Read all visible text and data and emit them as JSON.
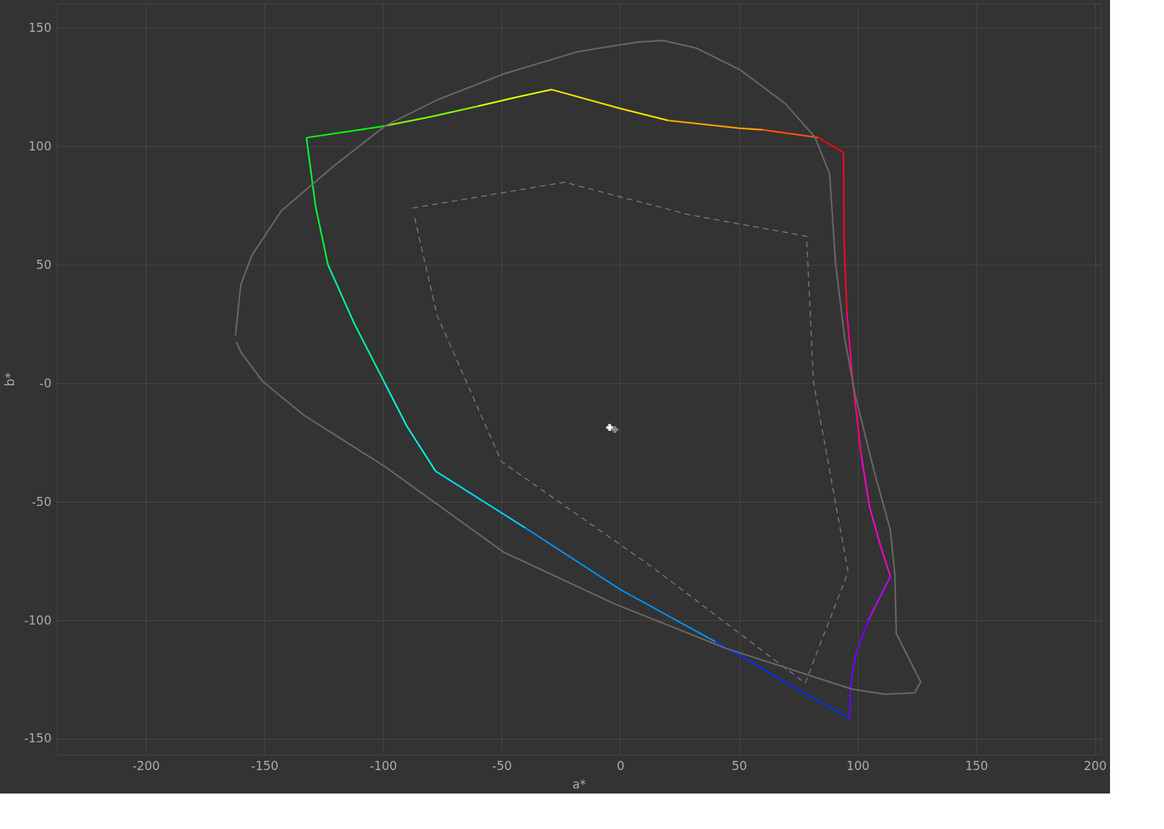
{
  "chart_data": {
    "type": "line",
    "xlabel": "a*",
    "ylabel": "b*",
    "xlim": [
      -237.5,
      202.5
    ],
    "ylim": [
      -156.6,
      160.3
    ],
    "xticks": [
      -200,
      -150,
      -100,
      -50,
      0,
      50,
      100,
      150,
      200
    ],
    "yticks": [
      -150,
      -100,
      -50,
      {
        "value": 0,
        "label": "-0"
      },
      50,
      100,
      150
    ],
    "grid": true,
    "series": [
      {
        "color": "#777777",
        "line_style": "dashed",
        "x": [
          -87.6,
          -23.6,
          28.9,
          78.5,
          81.4,
          96.0,
          77.9,
          13.3,
          -50.1,
          -77.3,
          -86.8
        ],
        "values": [
          74.0,
          84.9,
          71.2,
          62.1,
          0.8,
          -79.6,
          -126.5,
          -77.4,
          -33.0,
          28.9,
          70.5
        ]
      },
      {
        "color": "#00ff00",
        "line_style": "solid",
        "x": [
          -132.3,
          -120,
          -100
        ],
        "values": [
          103.7,
          105.5,
          108.5
        ]
      },
      {
        "color": "#80ff00",
        "line_style": "solid",
        "x": [
          -100,
          -80,
          -60
        ],
        "values": [
          108.5,
          112.5,
          117
        ]
      },
      {
        "color": "#e0ff00",
        "line_style": "solid",
        "x": [
          -60,
          -45,
          -28.9
        ],
        "values": [
          117,
          120.5,
          124
        ]
      },
      {
        "color": "#ffe000",
        "line_style": "solid",
        "x": [
          -28.9,
          0,
          20
        ],
        "values": [
          124,
          116,
          111
        ]
      },
      {
        "color": "#ffa000",
        "line_style": "solid",
        "x": [
          20,
          50,
          60
        ],
        "values": [
          111,
          107.7,
          107
        ]
      },
      {
        "color": "#ff5000",
        "line_style": "solid",
        "x": [
          60,
          83.5
        ],
        "values": [
          107,
          103.7
        ]
      },
      {
        "color": "#ff0000",
        "line_style": "solid",
        "x": [
          83.5,
          94.1
        ],
        "values": [
          103.7,
          97.4
        ]
      },
      {
        "color": "#ff0030",
        "line_style": "solid",
        "x": [
          94.1,
          94.3,
          95.5
        ],
        "values": [
          97.4,
          60,
          30
        ]
      },
      {
        "color": "#ff0080",
        "line_style": "solid",
        "x": [
          95.5,
          98,
          101.5
        ],
        "values": [
          30,
          0,
          -30
        ]
      },
      {
        "color": "#ff00c8",
        "line_style": "solid",
        "x": [
          101.5,
          105,
          109.5,
          113.8
        ],
        "values": [
          -30,
          -52,
          -68,
          -81.5
        ]
      },
      {
        "color": "#c000ff",
        "line_style": "solid",
        "x": [
          113.8,
          104.5
        ],
        "values": [
          -81.5,
          -100
        ]
      },
      {
        "color": "#7000ff",
        "line_style": "solid",
        "x": [
          104.5,
          99,
          97,
          96.6
        ],
        "values": [
          -100,
          -115,
          -128,
          -141.5
        ]
      },
      {
        "color": "#0030ff",
        "line_style": "solid",
        "x": [
          96.6,
          40
        ],
        "values": [
          -141.5,
          -109
        ]
      },
      {
        "color": "#0090ff",
        "line_style": "solid",
        "x": [
          40,
          0,
          -40
        ],
        "values": [
          -109,
          -87,
          -61
        ]
      },
      {
        "color": "#00d8ff",
        "line_style": "solid",
        "x": [
          -40,
          -77.9
        ],
        "values": [
          -61,
          -37
        ]
      },
      {
        "color": "#00ffe0",
        "line_style": "solid",
        "x": [
          -77.9,
          -90,
          -99.2
        ],
        "values": [
          -37,
          -18,
          0
        ]
      },
      {
        "color": "#00ff90",
        "line_style": "solid",
        "x": [
          -99.2,
          -112,
          -123.2
        ],
        "values": [
          0,
          25,
          50
        ]
      },
      {
        "color": "#00ff30",
        "line_style": "solid",
        "x": [
          -123.2,
          -128.5,
          -132.3
        ],
        "values": [
          50,
          75,
          103.7
        ]
      },
      {
        "color": "#666666",
        "line_style": "solid",
        "x": [
          -162.2,
          -160.0,
          -155.3,
          -142.9,
          -121.0,
          -99.1,
          -77.3,
          -49.2,
          -17.9,
          7.0,
          18.0,
          32.0,
          50.7,
          69.5,
          82.0,
          88.2,
          90.7,
          94.5,
          99.1,
          106.9,
          113.8,
          115.7,
          116.3,
          122.6,
          126.6,
          124.1,
          111.6,
          97.6,
          44.5,
          -2.3,
          -49.2,
          -99.1,
          -133.5,
          -150.7,
          -160.0,
          -161.8
        ],
        "values": [
          20.2,
          41.4,
          54.0,
          72.8,
          91.5,
          108.7,
          119.6,
          130.6,
          140.0,
          144.0,
          144.7,
          141.5,
          132.2,
          118.1,
          104.0,
          88.4,
          50.8,
          19.5,
          -5.5,
          -36.8,
          -61.8,
          -80.5,
          -105.6,
          -118.1,
          -125.9,
          -130.6,
          -131.2,
          -129.0,
          -111.8,
          -93.1,
          -71.2,
          -35.2,
          -13.3,
          0.8,
          13.3,
          17.5
        ]
      },
      {
        "type": "scatter",
        "marker": "cross",
        "color": "#ffffff",
        "x": [
          -4.5
        ],
        "values": [
          -18.6
        ]
      },
      {
        "type": "scatter",
        "marker": "cross",
        "color": "#888888",
        "x": [
          -2.3
        ],
        "values": [
          -19.5
        ]
      }
    ]
  }
}
